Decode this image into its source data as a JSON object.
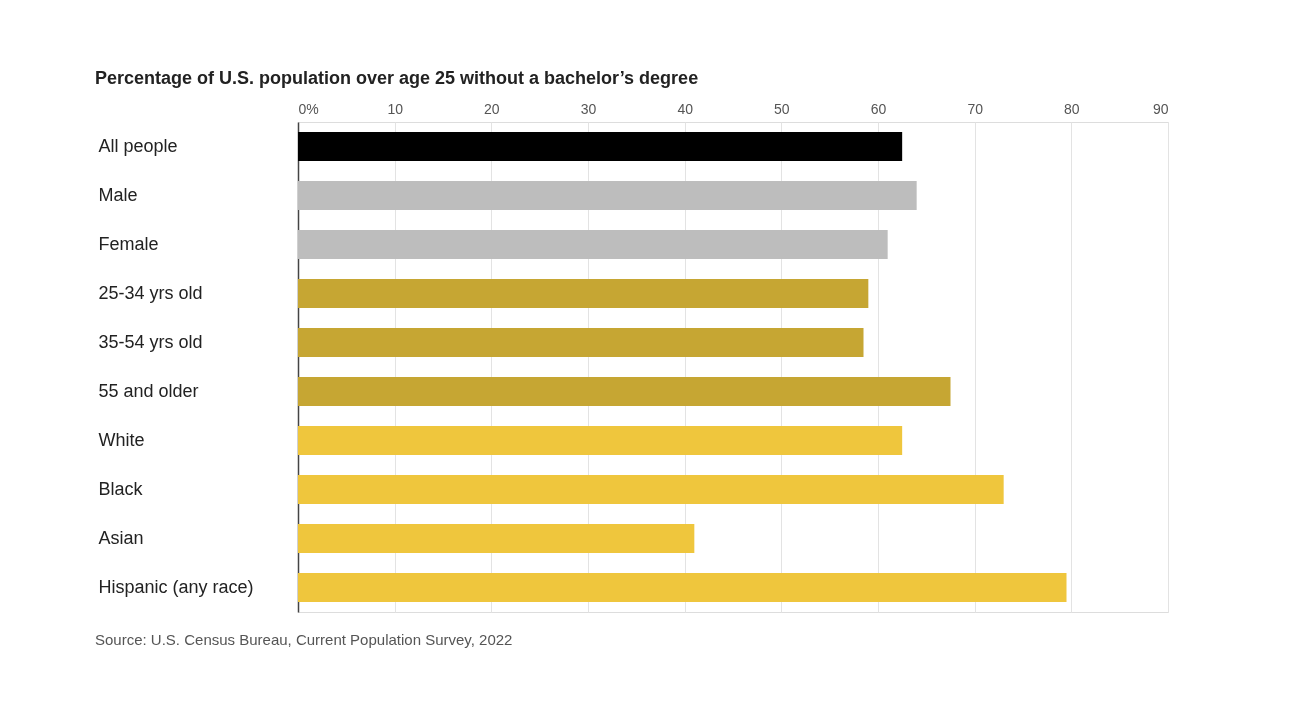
{
  "chart_data": {
    "type": "bar",
    "orientation": "horizontal",
    "title": "Percentage of U.S. population over age 25 without a bachelor’s degree",
    "categories": [
      "All people",
      "Male",
      "Female",
      "25-34 yrs old",
      "35-54 yrs old",
      "55 and older",
      "White",
      "Black",
      "Asian",
      "Hispanic (any race)"
    ],
    "values": [
      62.5,
      64,
      61,
      59,
      58.5,
      67.5,
      62.5,
      73,
      41,
      79.5
    ],
    "colors": [
      "#000000",
      "#bdbdbd",
      "#bdbdbd",
      "#c6a633",
      "#c6a633",
      "#c6a633",
      "#efc63d",
      "#efc63d",
      "#efc63d",
      "#efc63d"
    ],
    "xlim": [
      0,
      90
    ],
    "xticks": [
      {
        "value": 0,
        "label": "0%"
      },
      10,
      20,
      30,
      40,
      50,
      60,
      70,
      80,
      90
    ],
    "grid": "x",
    "legend": false,
    "annotations": [
      "Source: U.S. Census Bureau, Current Population Survey, 2022"
    ]
  }
}
